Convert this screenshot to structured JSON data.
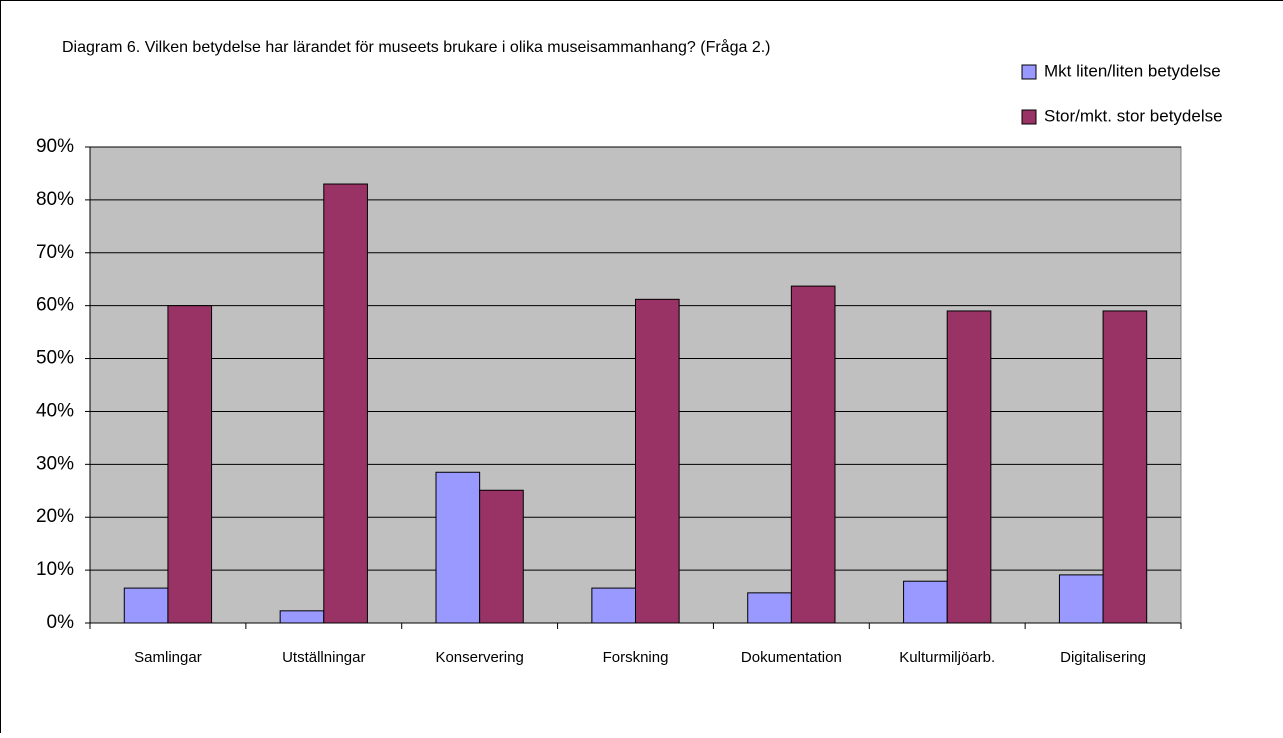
{
  "chart_data": {
    "type": "bar",
    "title": "Diagram 6. Vilken betydelse har lärandet för museets brukare i olika museisammanhang? (Fråga 2.)",
    "categories": [
      "Samlingar",
      "Utställningar",
      "Konservering",
      "Forskning",
      "Dokumentation",
      "Kulturmiljöarb.",
      "Digitalisering"
    ],
    "series": [
      {
        "name": "Mkt liten/liten betydelse",
        "color": "#9999ff",
        "values": [
          6.6,
          2.3,
          28.5,
          6.6,
          5.7,
          7.9,
          9.1
        ]
      },
      {
        "name": "Stor/mkt. stor betydelse",
        "color": "#993366",
        "values": [
          60,
          83,
          25.1,
          61.2,
          63.7,
          59,
          59
        ]
      }
    ],
    "ylim": [
      0,
      90
    ],
    "yticks": [
      {
        "value": 0,
        "label": "0%"
      },
      {
        "value": 10,
        "label": "10%"
      },
      {
        "value": 20,
        "label": "20%"
      },
      {
        "value": 30,
        "label": "30%"
      },
      {
        "value": 40,
        "label": "40%"
      },
      {
        "value": 50,
        "label": "50%"
      },
      {
        "value": 60,
        "label": "60%"
      },
      {
        "value": 70,
        "label": "70%"
      },
      {
        "value": 80,
        "label": "80%"
      },
      {
        "value": 90,
        "label": "90%"
      }
    ],
    "grid": true,
    "plot_background": "#c0c0c0",
    "legend": "top-right"
  }
}
